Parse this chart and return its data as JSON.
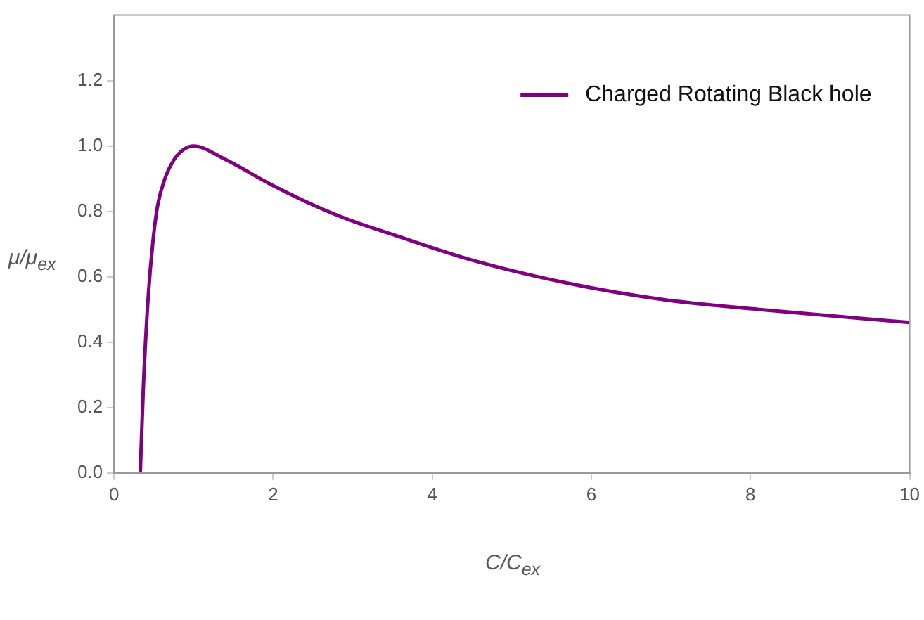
{
  "chart_data": {
    "type": "line",
    "xlabel": "C/C$_{ex}$",
    "ylabel": "μ/μ$_{ex}$",
    "xlim": [
      0,
      10
    ],
    "xticks": [
      0,
      2,
      4,
      6,
      8,
      10
    ],
    "ylim": [
      0,
      1.4
    ],
    "yticks": [
      {
        "value": 0,
        "label": "0.0"
      },
      0.2,
      0.4,
      0.6,
      0.8,
      {
        "value": 1,
        "label": "1.0"
      },
      1.2
    ],
    "legend": "top right",
    "grid": false,
    "series": [
      {
        "name": "Charged Rotating Black hole",
        "color": "#800080",
        "x": [
          0.33,
          0.37,
          0.43,
          0.49,
          0.55,
          0.64,
          0.76,
          0.88,
          1.0,
          1.39,
          1.99,
          2.59,
          3.0,
          3.49,
          4.51,
          5.71,
          6.91,
          8.11,
          10
        ],
        "values": [
          0,
          0.27,
          0.54,
          0.71,
          0.82,
          0.9,
          0.96,
          0.99,
          1.0,
          0.96,
          0.88,
          0.81,
          0.77,
          0.73,
          0.65,
          0.58,
          0.53,
          0.5,
          0.46
        ]
      }
    ]
  }
}
